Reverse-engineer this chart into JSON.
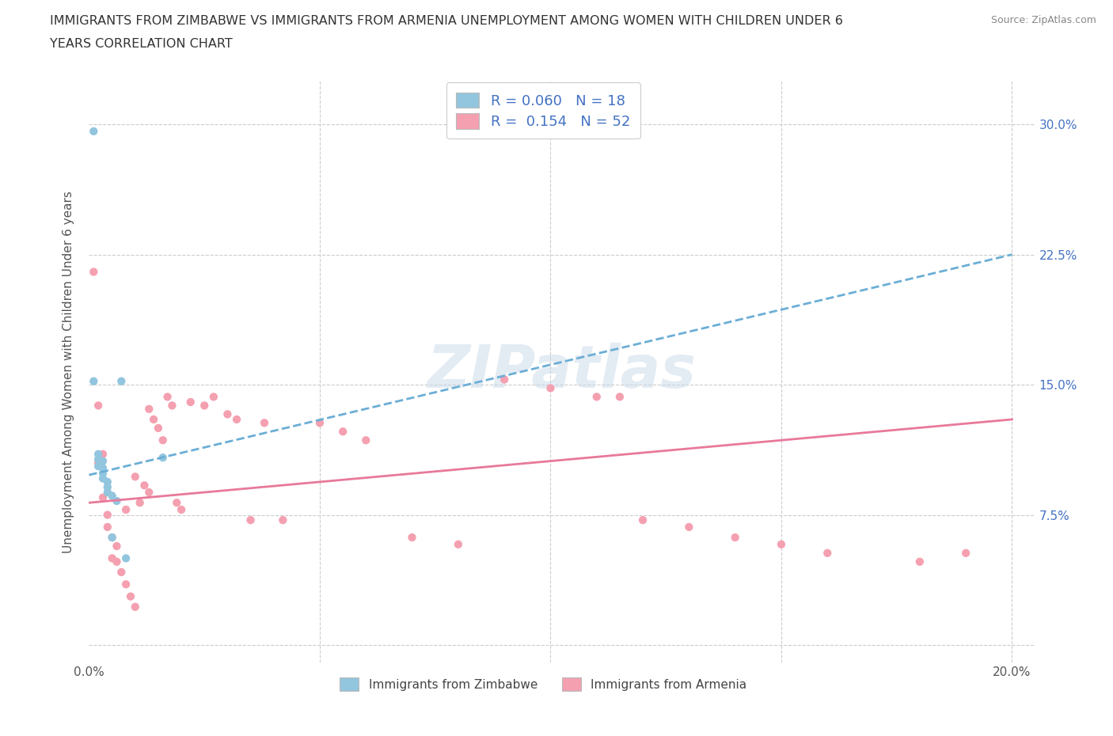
{
  "title_line1": "IMMIGRANTS FROM ZIMBABWE VS IMMIGRANTS FROM ARMENIA UNEMPLOYMENT AMONG WOMEN WITH CHILDREN UNDER 6",
  "title_line2": "YEARS CORRELATION CHART",
  "source_text": "Source: ZipAtlas.com",
  "ylabel": "Unemployment Among Women with Children Under 6 years",
  "xlim": [
    0.0,
    0.205
  ],
  "ylim": [
    -0.01,
    0.325
  ],
  "xticks": [
    0.0,
    0.05,
    0.1,
    0.15,
    0.2
  ],
  "xtick_labels": [
    "0.0%",
    "",
    "",
    "",
    "20.0%"
  ],
  "ytick_vals": [
    0.0,
    0.075,
    0.15,
    0.225,
    0.3
  ],
  "ytick_labels_right": [
    "",
    "7.5%",
    "15.0%",
    "22.5%",
    "30.0%"
  ],
  "color_zimbabwe": "#92C5DE",
  "color_armenia": "#F4A0B0",
  "trendline_zimbabwe": "#6BAED6",
  "trendline_armenia": "#E8799A",
  "color_text_blue": "#4472C4",
  "watermark_color": "#C8D8E8",
  "grid_color": "#CCCCCC",
  "zim_trend_x0": 0.0,
  "zim_trend_y0": 0.098,
  "zim_trend_x1": 0.2,
  "zim_trend_y1": 0.225,
  "arm_trend_x0": 0.0,
  "arm_trend_y0": 0.082,
  "arm_trend_x1": 0.2,
  "arm_trend_y1": 0.13,
  "zimbabwe_x": [
    0.001,
    0.001,
    0.002,
    0.002,
    0.002,
    0.003,
    0.003,
    0.003,
    0.003,
    0.004,
    0.004,
    0.004,
    0.005,
    0.005,
    0.006,
    0.007,
    0.008,
    0.016
  ],
  "zimbabwe_y": [
    0.296,
    0.152,
    0.11,
    0.107,
    0.103,
    0.106,
    0.102,
    0.099,
    0.096,
    0.094,
    0.091,
    0.088,
    0.086,
    0.062,
    0.083,
    0.152,
    0.05,
    0.108
  ],
  "armenia_x": [
    0.001,
    0.002,
    0.002,
    0.003,
    0.003,
    0.004,
    0.004,
    0.005,
    0.005,
    0.006,
    0.006,
    0.007,
    0.008,
    0.008,
    0.009,
    0.01,
    0.01,
    0.011,
    0.012,
    0.013,
    0.013,
    0.014,
    0.015,
    0.016,
    0.017,
    0.018,
    0.019,
    0.02,
    0.022,
    0.025,
    0.027,
    0.03,
    0.032,
    0.035,
    0.038,
    0.042,
    0.05,
    0.055,
    0.06,
    0.07,
    0.08,
    0.09,
    0.1,
    0.11,
    0.115,
    0.12,
    0.13,
    0.14,
    0.15,
    0.16,
    0.18,
    0.19
  ],
  "armenia_y": [
    0.215,
    0.138,
    0.105,
    0.11,
    0.085,
    0.075,
    0.068,
    0.062,
    0.05,
    0.057,
    0.048,
    0.042,
    0.078,
    0.035,
    0.028,
    0.022,
    0.097,
    0.082,
    0.092,
    0.088,
    0.136,
    0.13,
    0.125,
    0.118,
    0.143,
    0.138,
    0.082,
    0.078,
    0.14,
    0.138,
    0.143,
    0.133,
    0.13,
    0.072,
    0.128,
    0.072,
    0.128,
    0.123,
    0.118,
    0.062,
    0.058,
    0.153,
    0.148,
    0.143,
    0.143,
    0.072,
    0.068,
    0.062,
    0.058,
    0.053,
    0.048,
    0.053
  ]
}
